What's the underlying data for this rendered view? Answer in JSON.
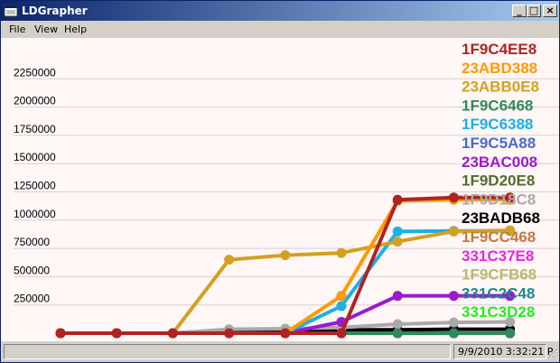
{
  "window": {
    "title": "LDGrapher",
    "buttons": {
      "minimize": "_",
      "maximize": "□",
      "close": "×"
    }
  },
  "menu": [
    "File",
    "View",
    "Help"
  ],
  "status": {
    "left": "",
    "datetime": "9/9/2010 3:32:21 P"
  },
  "chart_data": {
    "type": "line",
    "title": "",
    "xlabel": "",
    "ylabel": "",
    "ylim": [
      0,
      2400000
    ],
    "y_ticks": [
      "2250000",
      "2000000",
      "1750000",
      "1500000",
      "1250000",
      "1000000",
      "750000",
      "500000",
      "250000"
    ],
    "y_tick_values": [
      2250000,
      2000000,
      1750000,
      1500000,
      1250000,
      1000000,
      750000,
      500000,
      250000
    ],
    "x": [
      0,
      1,
      2,
      3,
      4,
      5,
      6,
      7,
      8
    ],
    "grid": "horizontal",
    "legend_position": "right",
    "series": [
      {
        "name": "1F9C4EE8",
        "color": "#b22222",
        "values": [
          0,
          0,
          0,
          0,
          0,
          0,
          1180000,
          1200000,
          1200000
        ]
      },
      {
        "name": "23ABD388",
        "color": "#ff9a00",
        "values": [
          0,
          0,
          0,
          0,
          0,
          330000,
          1170000,
          1180000,
          1180000
        ]
      },
      {
        "name": "23ABB0E8",
        "color": "#d4a020",
        "values": [
          0,
          0,
          0,
          650000,
          690000,
          710000,
          810000,
          900000,
          910000
        ]
      },
      {
        "name": "1F9C6468",
        "color": "#2e8b57",
        "values": [
          0,
          0,
          0,
          0,
          0,
          0,
          0,
          0,
          0
        ]
      },
      {
        "name": "1F9C6388",
        "color": "#1ab0e8",
        "values": [
          0,
          0,
          0,
          0,
          0,
          240000,
          900000,
          905000,
          905000
        ]
      },
      {
        "name": "1F9C5A88",
        "color": "#4a6ad0",
        "values": [
          0,
          0,
          0,
          0,
          0,
          0,
          0,
          0,
          0
        ]
      },
      {
        "name": "23BAC008",
        "color": "#9a1ad0",
        "values": [
          0,
          0,
          0,
          0,
          0,
          100000,
          330000,
          330000,
          330000
        ]
      },
      {
        "name": "1F9D20E8",
        "color": "#556b2f",
        "values": [
          0,
          0,
          0,
          0,
          0,
          0,
          0,
          0,
          0
        ]
      },
      {
        "name": "1F9D18C8",
        "color": "#a9a9a9",
        "values": [
          0,
          0,
          0,
          35000,
          40000,
          50000,
          80000,
          95000,
          100000
        ]
      },
      {
        "name": "23BADB68",
        "color": "#000000",
        "values": [
          0,
          0,
          0,
          30000,
          30000,
          30000,
          30000,
          35000,
          35000
        ]
      },
      {
        "name": "1F9CC468",
        "color": "#c8783c",
        "values": [
          0,
          0,
          0,
          0,
          0,
          0,
          0,
          0,
          0
        ]
      },
      {
        "name": "331C37E8",
        "color": "#ee22ee",
        "values": [
          0,
          0,
          0,
          0,
          0,
          0,
          0,
          0,
          0
        ]
      },
      {
        "name": "1F9CFB68",
        "color": "#b8b870",
        "values": [
          0,
          0,
          0,
          0,
          0,
          0,
          0,
          0,
          0
        ]
      },
      {
        "name": "331C2C48",
        "color": "#1a8a8a",
        "values": [
          0,
          0,
          0,
          0,
          0,
          0,
          0,
          0,
          0
        ]
      },
      {
        "name": "331C3D28",
        "color": "#22ee22",
        "values": [
          0,
          0,
          0,
          0,
          0,
          0,
          0,
          0,
          0
        ]
      }
    ]
  }
}
